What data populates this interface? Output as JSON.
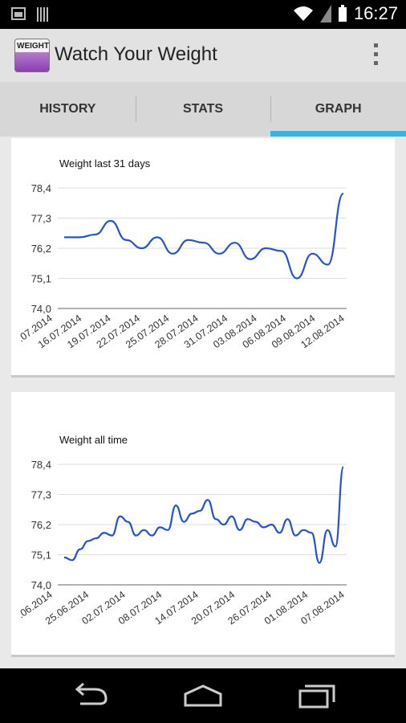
{
  "status_bar": {
    "time": "16:27",
    "icons": [
      "image-icon",
      "barcode-icon",
      "wifi-icon",
      "signal-icon",
      "battery-icon"
    ]
  },
  "app": {
    "icon_text": "WEIGHT",
    "title": "Watch Your Weight"
  },
  "tabs": [
    {
      "label": "HISTORY"
    },
    {
      "label": "STATS"
    },
    {
      "label": "GRAPH",
      "active": true
    }
  ],
  "colors": {
    "accent": "#33b5e5",
    "line": "#2255cc"
  },
  "charts": [
    {
      "title": "Weight last 31 days"
    },
    {
      "title": "Weight all time"
    }
  ],
  "chart_data": [
    {
      "type": "line",
      "title": "Weight last 31 days",
      "y_ticks": [
        "78,4",
        "77,3",
        "76,2",
        "75,1",
        "74,0"
      ],
      "ylim": [
        74.0,
        78.4
      ],
      "x_ticks": [
        ".07.2014",
        "16.07.2014",
        "19.07.2014",
        "22.07.2014",
        "25.07.2014",
        "28.07.2014",
        "31.07.2014",
        "03.08.2014",
        "06.08.2014",
        "09.08.2014",
        "12.08.2014"
      ],
      "series": [
        {
          "values": [
            76.6,
            76.6,
            76.7,
            77.2,
            76.5,
            76.2,
            76.6,
            76.0,
            76.5,
            76.4,
            76.0,
            76.4,
            75.8,
            76.2,
            76.1,
            75.1,
            76.0,
            75.6,
            78.2
          ]
        }
      ],
      "grid": true
    },
    {
      "type": "line",
      "title": "Weight all time",
      "y_ticks": [
        "78,4",
        "77,3",
        "76,2",
        "75,1",
        "74,0"
      ],
      "ylim": [
        74.0,
        78.4
      ],
      "x_ticks": [
        ".06.2014",
        "25.06.2014",
        "02.07.2014",
        "08.07.2014",
        "14.07.2014",
        "20.07.2014",
        "26.07.2014",
        "01.08.2014",
        "07.08.2014"
      ],
      "series": [
        {
          "values": [
            75.0,
            74.9,
            75.3,
            75.6,
            75.7,
            75.9,
            75.8,
            76.5,
            76.3,
            75.8,
            76.0,
            75.8,
            76.1,
            76.0,
            76.9,
            76.3,
            76.6,
            76.7,
            77.1,
            76.4,
            76.2,
            76.5,
            76.0,
            76.4,
            76.3,
            76.1,
            76.2,
            75.9,
            76.4,
            75.8,
            76.0,
            75.9,
            74.8,
            76.0,
            75.4,
            78.3
          ]
        }
      ],
      "grid": true
    }
  ]
}
